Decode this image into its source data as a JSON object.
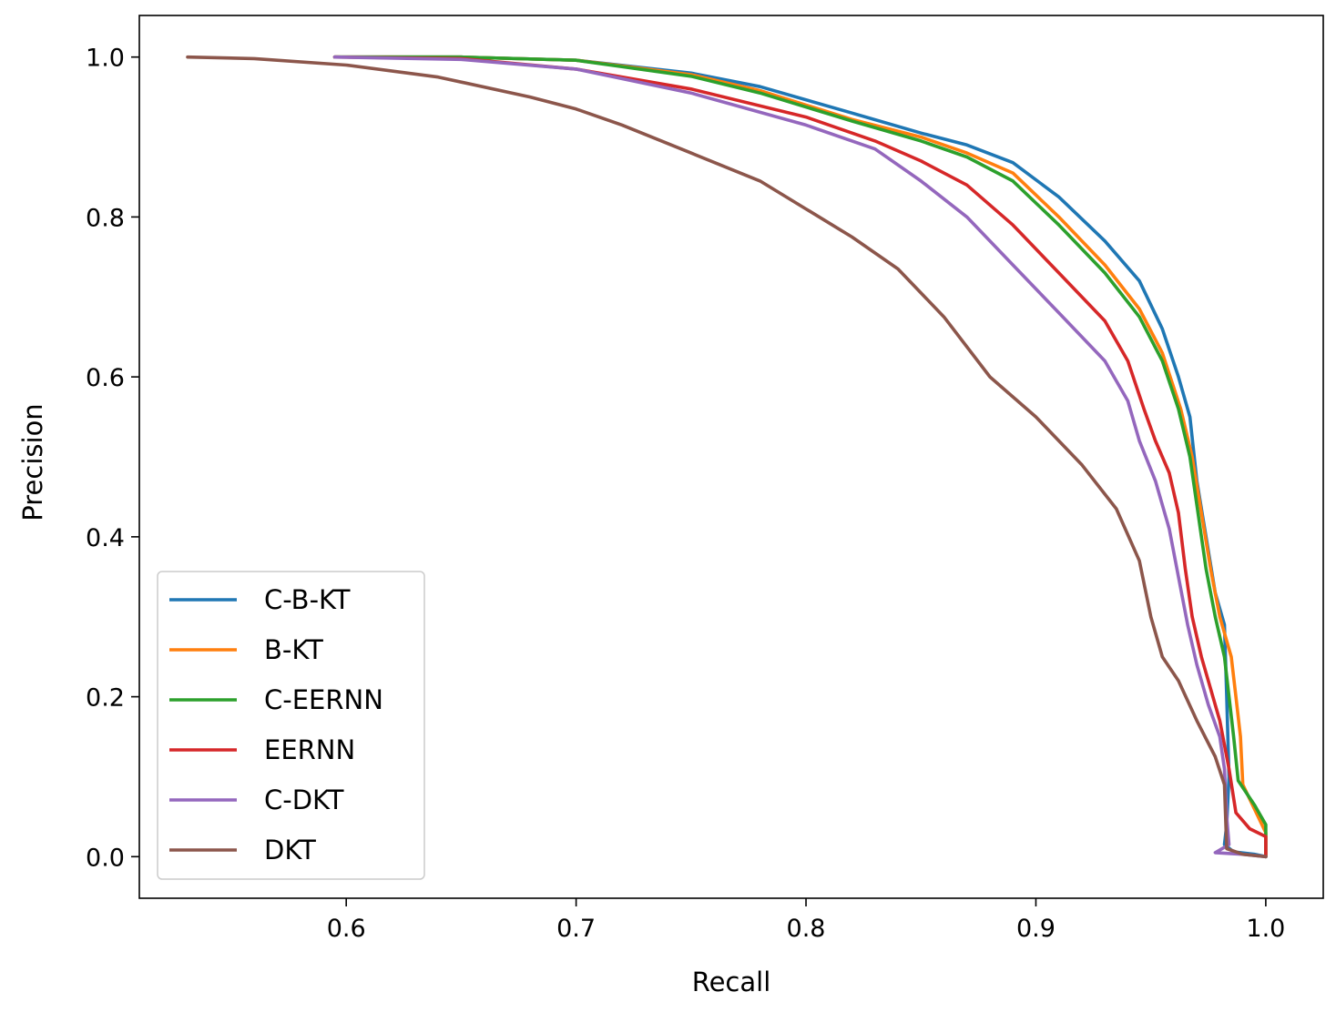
{
  "chart_data": {
    "type": "line",
    "title": "",
    "xlabel": "Recall",
    "ylabel": "Precision",
    "xlim": [
      0.51,
      1.025
    ],
    "ylim": [
      -0.052,
      1.052
    ],
    "xticks": [
      0.6,
      0.7,
      0.8,
      0.9,
      1.0
    ],
    "xtick_labels": [
      "0.6",
      "0.7",
      "0.8",
      "0.9",
      "1.0"
    ],
    "yticks": [
      0.0,
      0.2,
      0.4,
      0.6,
      0.8,
      1.0
    ],
    "ytick_labels": [
      "0.0",
      "0.2",
      "0.4",
      "0.6",
      "0.8",
      "1.0"
    ],
    "grid": false,
    "legend_position": "lower-left",
    "series": [
      {
        "name": "C-B-KT",
        "color": "#1f77b4",
        "points": [
          [
            0.595,
            1.0
          ],
          [
            0.65,
            1.0
          ],
          [
            0.7,
            0.996
          ],
          [
            0.75,
            0.98
          ],
          [
            0.78,
            0.963
          ],
          [
            0.82,
            0.93
          ],
          [
            0.85,
            0.905
          ],
          [
            0.87,
            0.89
          ],
          [
            0.89,
            0.868
          ],
          [
            0.91,
            0.825
          ],
          [
            0.93,
            0.77
          ],
          [
            0.945,
            0.72
          ],
          [
            0.955,
            0.66
          ],
          [
            0.962,
            0.6
          ],
          [
            0.967,
            0.55
          ],
          [
            0.97,
            0.47
          ],
          [
            0.974,
            0.4
          ],
          [
            0.978,
            0.33
          ],
          [
            0.982,
            0.29
          ],
          [
            0.983,
            0.2
          ],
          [
            0.984,
            0.1
          ],
          [
            0.983,
            0.04
          ],
          [
            0.982,
            0.015
          ],
          [
            0.986,
            0.006
          ],
          [
            0.995,
            0.003
          ],
          [
            1.0,
            0.0
          ]
        ]
      },
      {
        "name": "B-KT",
        "color": "#ff7f0e",
        "points": [
          [
            0.595,
            1.0
          ],
          [
            0.65,
            1.0
          ],
          [
            0.7,
            0.996
          ],
          [
            0.75,
            0.978
          ],
          [
            0.78,
            0.958
          ],
          [
            0.82,
            0.922
          ],
          [
            0.85,
            0.9
          ],
          [
            0.87,
            0.88
          ],
          [
            0.89,
            0.855
          ],
          [
            0.91,
            0.8
          ],
          [
            0.93,
            0.74
          ],
          [
            0.945,
            0.685
          ],
          [
            0.955,
            0.63
          ],
          [
            0.963,
            0.56
          ],
          [
            0.968,
            0.5
          ],
          [
            0.972,
            0.43
          ],
          [
            0.976,
            0.36
          ],
          [
            0.98,
            0.3
          ],
          [
            0.985,
            0.25
          ],
          [
            0.987,
            0.2
          ],
          [
            0.989,
            0.15
          ],
          [
            0.99,
            0.09
          ],
          [
            0.995,
            0.06
          ],
          [
            1.0,
            0.03
          ],
          [
            1.0,
            0.0
          ]
        ]
      },
      {
        "name": "C-EERNN",
        "color": "#2ca02c",
        "points": [
          [
            0.595,
            1.0
          ],
          [
            0.65,
            1.0
          ],
          [
            0.7,
            0.996
          ],
          [
            0.75,
            0.976
          ],
          [
            0.78,
            0.955
          ],
          [
            0.82,
            0.92
          ],
          [
            0.85,
            0.895
          ],
          [
            0.87,
            0.875
          ],
          [
            0.89,
            0.845
          ],
          [
            0.91,
            0.79
          ],
          [
            0.93,
            0.73
          ],
          [
            0.945,
            0.675
          ],
          [
            0.955,
            0.62
          ],
          [
            0.962,
            0.56
          ],
          [
            0.967,
            0.5
          ],
          [
            0.97,
            0.44
          ],
          [
            0.974,
            0.36
          ],
          [
            0.978,
            0.3
          ],
          [
            0.982,
            0.25
          ],
          [
            0.986,
            0.15
          ],
          [
            0.988,
            0.095
          ],
          [
            0.995,
            0.065
          ],
          [
            1.0,
            0.04
          ],
          [
            1.0,
            0.0
          ]
        ]
      },
      {
        "name": "EERNN",
        "color": "#d62728",
        "points": [
          [
            0.595,
            1.0
          ],
          [
            0.65,
            0.998
          ],
          [
            0.7,
            0.985
          ],
          [
            0.75,
            0.96
          ],
          [
            0.8,
            0.925
          ],
          [
            0.83,
            0.895
          ],
          [
            0.85,
            0.87
          ],
          [
            0.87,
            0.84
          ],
          [
            0.89,
            0.79
          ],
          [
            0.91,
            0.73
          ],
          [
            0.93,
            0.67
          ],
          [
            0.94,
            0.62
          ],
          [
            0.947,
            0.56
          ],
          [
            0.952,
            0.52
          ],
          [
            0.958,
            0.48
          ],
          [
            0.962,
            0.43
          ],
          [
            0.965,
            0.36
          ],
          [
            0.968,
            0.3
          ],
          [
            0.972,
            0.25
          ],
          [
            0.976,
            0.21
          ],
          [
            0.98,
            0.17
          ],
          [
            0.984,
            0.11
          ],
          [
            0.987,
            0.055
          ],
          [
            0.993,
            0.035
          ],
          [
            1.0,
            0.025
          ],
          [
            1.0,
            0.0
          ]
        ]
      },
      {
        "name": "C-DKT",
        "color": "#9467bd",
        "points": [
          [
            0.595,
            1.0
          ],
          [
            0.65,
            0.997
          ],
          [
            0.7,
            0.985
          ],
          [
            0.75,
            0.955
          ],
          [
            0.8,
            0.915
          ],
          [
            0.83,
            0.885
          ],
          [
            0.85,
            0.845
          ],
          [
            0.87,
            0.8
          ],
          [
            0.89,
            0.74
          ],
          [
            0.91,
            0.68
          ],
          [
            0.93,
            0.62
          ],
          [
            0.94,
            0.57
          ],
          [
            0.945,
            0.52
          ],
          [
            0.952,
            0.47
          ],
          [
            0.958,
            0.41
          ],
          [
            0.962,
            0.35
          ],
          [
            0.966,
            0.29
          ],
          [
            0.97,
            0.24
          ],
          [
            0.975,
            0.19
          ],
          [
            0.98,
            0.15
          ],
          [
            0.982,
            0.11
          ],
          [
            0.983,
            0.05
          ],
          [
            0.984,
            0.015
          ],
          [
            0.978,
            0.005
          ],
          [
            0.99,
            0.003
          ],
          [
            1.0,
            0.0
          ]
        ]
      },
      {
        "name": "DKT",
        "color": "#8c564b",
        "points": [
          [
            0.531,
            1.0
          ],
          [
            0.56,
            0.998
          ],
          [
            0.6,
            0.99
          ],
          [
            0.64,
            0.975
          ],
          [
            0.68,
            0.95
          ],
          [
            0.7,
            0.935
          ],
          [
            0.72,
            0.915
          ],
          [
            0.75,
            0.88
          ],
          [
            0.78,
            0.845
          ],
          [
            0.8,
            0.81
          ],
          [
            0.82,
            0.775
          ],
          [
            0.84,
            0.735
          ],
          [
            0.86,
            0.675
          ],
          [
            0.88,
            0.6
          ],
          [
            0.9,
            0.55
          ],
          [
            0.92,
            0.49
          ],
          [
            0.935,
            0.435
          ],
          [
            0.945,
            0.37
          ],
          [
            0.95,
            0.3
          ],
          [
            0.955,
            0.25
          ],
          [
            0.962,
            0.22
          ],
          [
            0.97,
            0.17
          ],
          [
            0.978,
            0.125
          ],
          [
            0.982,
            0.09
          ],
          [
            0.983,
            0.01
          ],
          [
            0.99,
            0.003
          ],
          [
            1.0,
            0.0
          ]
        ]
      }
    ]
  }
}
